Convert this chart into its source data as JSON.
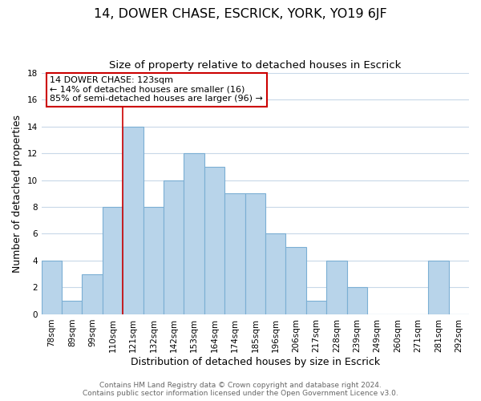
{
  "title": "14, DOWER CHASE, ESCRICK, YORK, YO19 6JF",
  "subtitle": "Size of property relative to detached houses in Escrick",
  "xlabel": "Distribution of detached houses by size in Escrick",
  "ylabel": "Number of detached properties",
  "bar_labels": [
    "78sqm",
    "89sqm",
    "99sqm",
    "110sqm",
    "121sqm",
    "132sqm",
    "142sqm",
    "153sqm",
    "164sqm",
    "174sqm",
    "185sqm",
    "196sqm",
    "206sqm",
    "217sqm",
    "228sqm",
    "239sqm",
    "249sqm",
    "260sqm",
    "271sqm",
    "281sqm",
    "292sqm"
  ],
  "bar_values": [
    4,
    1,
    3,
    8,
    14,
    8,
    10,
    12,
    11,
    9,
    9,
    6,
    5,
    1,
    4,
    2,
    0,
    0,
    0,
    4,
    0
  ],
  "bar_color": "#b8d4ea",
  "bar_edge_color": "#7bafd4",
  "highlight_bar_index": 4,
  "highlight_line_color": "#cc0000",
  "ylim": [
    0,
    18
  ],
  "yticks": [
    0,
    2,
    4,
    6,
    8,
    10,
    12,
    14,
    16,
    18
  ],
  "annotation_box_text": "14 DOWER CHASE: 123sqm\n← 14% of detached houses are smaller (16)\n85% of semi-detached houses are larger (96) →",
  "footer_line1": "Contains HM Land Registry data © Crown copyright and database right 2024.",
  "footer_line2": "Contains public sector information licensed under the Open Government Licence v3.0.",
  "background_color": "#ffffff",
  "grid_color": "#c8d8e8",
  "title_fontsize": 11.5,
  "subtitle_fontsize": 9.5,
  "axis_label_fontsize": 9,
  "tick_fontsize": 7.5,
  "annotation_fontsize": 8,
  "footer_fontsize": 6.5
}
